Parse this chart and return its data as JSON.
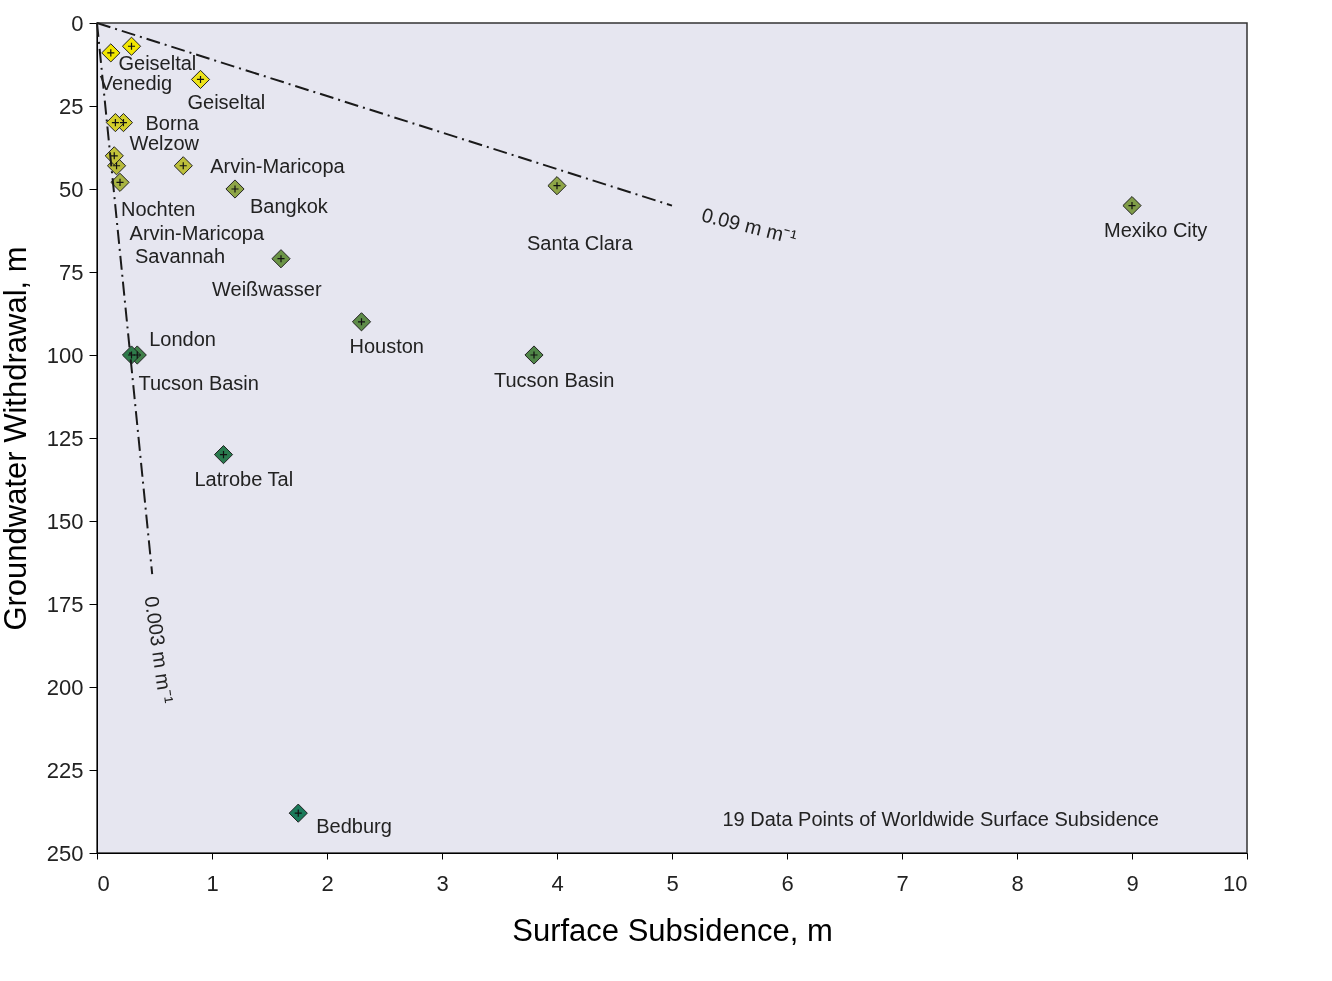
{
  "chart_data": {
    "type": "scatter",
    "xlabel": "Surface Subsidence, m",
    "ylabel": "Groundwater Withdrawal, m",
    "xlim": [
      0,
      10
    ],
    "xticks": [
      {
        "value": 0,
        "label": "0"
      },
      {
        "value": 1,
        "label": "1"
      },
      {
        "value": 2,
        "label": "2"
      },
      {
        "value": 3,
        "label": "3"
      },
      {
        "value": 4,
        "label": "4"
      },
      {
        "value": 5,
        "label": "5"
      },
      {
        "value": 6,
        "label": "6"
      },
      {
        "value": 7,
        "label": "7"
      },
      {
        "value": 8,
        "label": "8"
      },
      {
        "value": 9,
        "label": "9"
      },
      {
        "value": 10,
        "label": "10"
      }
    ],
    "ylim": [
      250,
      0
    ],
    "yticks": [
      0,
      25,
      50,
      75,
      100,
      125,
      150,
      175,
      200,
      225,
      250
    ],
    "marker": "diamond",
    "series": [
      {
        "x": [
          0.12,
          0.3,
          0.9,
          0.23,
          0.16,
          0.2,
          0.17,
          0.15,
          0.75,
          1.2,
          4.0,
          9.0,
          1.6,
          2.3,
          3.8,
          0.35,
          0.3,
          1.1,
          1.75
        ],
        "values": [
          9,
          7,
          17,
          30,
          30,
          48,
          43,
          40,
          43,
          50,
          49,
          55,
          71,
          90,
          100,
          100,
          100,
          130,
          238
        ],
        "colors": [
          "#f2e600",
          "#f2e600",
          "#ece21a",
          "#d4cf2a",
          "#d4cf2a",
          "#a8b442",
          "#b8bb3c",
          "#c2c23a",
          "#bcbf3a",
          "#8ea547",
          "#8ea547",
          "#7f9c48",
          "#6b9446",
          "#5e8c48",
          "#4f8547",
          "#3f7f48",
          "#2e7a4a",
          "#2a7a4e",
          "#1a7a5a"
        ]
      },
      {
        "type": "line",
        "x": [
          0,
          5
        ],
        "values": [
          0,
          55
        ],
        "color": "#1a1a1a",
        "line_style": "dashed",
        "marker": "none"
      },
      {
        "type": "line",
        "x": [
          0,
          0.48
        ],
        "values": [
          0,
          166
        ],
        "color": "#1a1a1a",
        "line_style": "dashed",
        "marker": "none"
      }
    ],
    "annotations": [
      {
        "text": "Venedig",
        "x": 0.12,
        "y": 9
      },
      {
        "text": "Geiseltal",
        "x": 0.3,
        "y": 7
      },
      {
        "text": "Geiseltal",
        "x": 0.9,
        "y": 17
      },
      {
        "text": "Borna",
        "x": 0.23,
        "y": 30
      },
      {
        "text": "Welzow",
        "x": 0.16,
        "y": 30
      },
      {
        "text": "Nochten",
        "x": 0.2,
        "y": 48
      },
      {
        "text": "Arvin-Maricopa",
        "x": 0.17,
        "y": 43
      },
      {
        "text": "Arvin-Maricopa",
        "x": 0.75,
        "y": 43
      },
      {
        "text": "Bangkok",
        "x": 1.2,
        "y": 50
      },
      {
        "text": "Santa Clara",
        "x": 4.0,
        "y": 49
      },
      {
        "text": "Mexiko City",
        "x": 9.0,
        "y": 55
      },
      {
        "text": "Weißwasser",
        "x": 1.6,
        "y": 71
      },
      {
        "text": "Houston",
        "x": 2.3,
        "y": 90
      },
      {
        "text": "Tucson Basin",
        "x": 3.8,
        "y": 100
      },
      {
        "text": "London",
        "x": 0.35,
        "y": 100
      },
      {
        "text": "Tucson Basin",
        "x": 0.3,
        "y": 100
      },
      {
        "text": "Latrobe Tal",
        "x": 1.1,
        "y": 130
      },
      {
        "text": "Bedburg",
        "x": 1.75,
        "y": 238
      },
      "Savannah",
      "0.09 m m⁻¹",
      "0.003 m m⁻¹",
      "19 Data Points of Worldwide Surface Subsidence"
    ]
  }
}
